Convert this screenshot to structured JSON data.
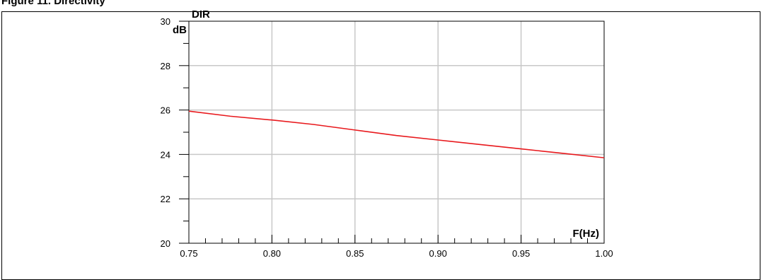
{
  "caption": "Figure 11. Directivity",
  "chart_data": {
    "type": "line",
    "title": "DIR",
    "xlabel": "F(Hz)",
    "ylabel": "dB",
    "xlim": [
      0.75,
      1.0
    ],
    "ylim": [
      20,
      30
    ],
    "x_ticks": [
      "0.75",
      "0.80",
      "0.85",
      "0.90",
      "0.95",
      "1.00"
    ],
    "y_ticks": [
      "20",
      "22",
      "24",
      "26",
      "28",
      "30"
    ],
    "grid": true,
    "series": [
      {
        "color": "#e8191d",
        "x": [
          0.75,
          0.775,
          0.8,
          0.825,
          0.85,
          0.875,
          0.9,
          0.925,
          0.95,
          0.975,
          1.0
        ],
        "y": [
          25.95,
          25.72,
          25.55,
          25.35,
          25.1,
          24.85,
          24.65,
          24.45,
          24.25,
          24.05,
          23.85
        ]
      }
    ]
  }
}
